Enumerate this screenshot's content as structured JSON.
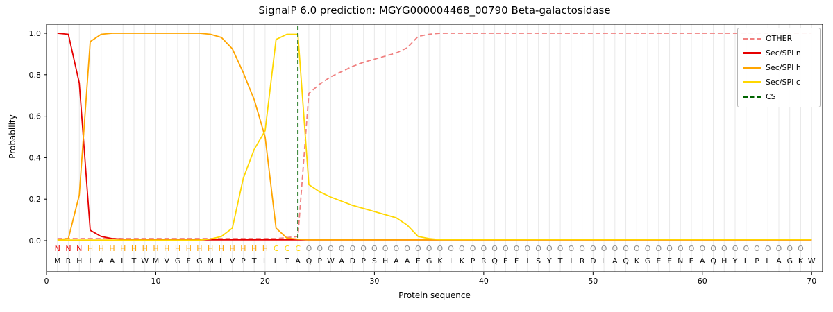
{
  "chart_data": {
    "type": "line",
    "title": "SignalP 6.0 prediction: MGYG000004468_00790 Beta-galactosidase",
    "xlabel": "Protein sequence",
    "ylabel": "Probability",
    "xlim": [
      0,
      71
    ],
    "ylim": [
      -0.15,
      1.045
    ],
    "x_ticks": [
      0,
      10,
      20,
      30,
      40,
      50,
      60,
      70
    ],
    "y_ticks": [
      0.0,
      0.2,
      0.4,
      0.6,
      0.8,
      1.0
    ],
    "x_positions": {
      "from": 1,
      "to": 70
    },
    "grid": "vertical-per-residue",
    "grid_color": "#e9e9e9",
    "legend_position": "upper right",
    "series": [
      {
        "name": "OTHER",
        "color": "#f08080",
        "dash": true,
        "values": [
          0.01,
          0.01,
          0.01,
          0.01,
          0.01,
          0.01,
          0.01,
          0.01,
          0.01,
          0.01,
          0.01,
          0.01,
          0.01,
          0.01,
          0.01,
          0.01,
          0.01,
          0.01,
          0.01,
          0.01,
          0.01,
          0.015,
          0.02,
          0.71,
          0.755,
          0.79,
          0.815,
          0.84,
          0.86,
          0.875,
          0.89,
          0.905,
          0.93,
          0.985,
          0.995,
          1.0,
          1.0,
          1.0,
          1.0,
          1.0,
          1.0,
          1.0,
          1.0,
          1.0,
          1.0,
          1.0,
          1.0,
          1.0,
          1.0,
          1.0,
          1.0,
          1.0,
          1.0,
          1.0,
          1.0,
          1.0,
          1.0,
          1.0,
          1.0,
          1.0,
          1.0,
          1.0,
          1.0,
          1.0,
          1.0,
          1.0,
          1.0,
          1.0,
          1.0,
          1.0
        ]
      },
      {
        "name": "Sec/SPI n",
        "color": "#e60000",
        "dash": false,
        "values": [
          1.0,
          0.995,
          0.76,
          0.05,
          0.02,
          0.01,
          0.007,
          0.005,
          0.004,
          0.004,
          0.004,
          0.004,
          0.004,
          0.004,
          0.004,
          0.004,
          0.004,
          0.004,
          0.004,
          0.004,
          0.004,
          0.004,
          0.004,
          0.004,
          0.004,
          0.004,
          0.004,
          0.004,
          0.004,
          0.004,
          0.004,
          0.004,
          0.004,
          0.004,
          0.004,
          0.004,
          0.004,
          0.004,
          0.004,
          0.004,
          0.004,
          0.004,
          0.004,
          0.004,
          0.004,
          0.004,
          0.004,
          0.004,
          0.004,
          0.004,
          0.004,
          0.004,
          0.004,
          0.004,
          0.004,
          0.004,
          0.004,
          0.004,
          0.004,
          0.004,
          0.004,
          0.004,
          0.004,
          0.004,
          0.004,
          0.004,
          0.004,
          0.004,
          0.004,
          0.004
        ]
      },
      {
        "name": "Sec/SPI h",
        "color": "#ffa500",
        "dash": false,
        "values": [
          0.005,
          0.01,
          0.22,
          0.96,
          0.995,
          1.0,
          1.0,
          1.0,
          1.0,
          1.0,
          1.0,
          1.0,
          1.0,
          1.0,
          0.995,
          0.98,
          0.925,
          0.81,
          0.68,
          0.5,
          0.06,
          0.012,
          0.007,
          0.004,
          0.004,
          0.004,
          0.004,
          0.004,
          0.004,
          0.004,
          0.004,
          0.004,
          0.004,
          0.004,
          0.004,
          0.004,
          0.004,
          0.004,
          0.004,
          0.004,
          0.004,
          0.004,
          0.004,
          0.004,
          0.004,
          0.004,
          0.004,
          0.004,
          0.004,
          0.004,
          0.004,
          0.004,
          0.004,
          0.004,
          0.004,
          0.004,
          0.004,
          0.004,
          0.004,
          0.004,
          0.004,
          0.004,
          0.004,
          0.004,
          0.004,
          0.004,
          0.004,
          0.004,
          0.004,
          0.004
        ]
      },
      {
        "name": "Sec/SPI c",
        "color": "#ffd700",
        "dash": false,
        "values": [
          0.003,
          0.003,
          0.003,
          0.003,
          0.003,
          0.003,
          0.003,
          0.003,
          0.003,
          0.003,
          0.003,
          0.003,
          0.003,
          0.003,
          0.008,
          0.02,
          0.06,
          0.3,
          0.44,
          0.53,
          0.97,
          0.995,
          0.995,
          0.27,
          0.235,
          0.21,
          0.19,
          0.17,
          0.155,
          0.14,
          0.125,
          0.11,
          0.075,
          0.02,
          0.01,
          0.005,
          0.005,
          0.005,
          0.005,
          0.005,
          0.005,
          0.005,
          0.005,
          0.005,
          0.005,
          0.005,
          0.005,
          0.005,
          0.005,
          0.005,
          0.005,
          0.005,
          0.005,
          0.005,
          0.005,
          0.005,
          0.005,
          0.005,
          0.005,
          0.005,
          0.005,
          0.005,
          0.005,
          0.005,
          0.005,
          0.005,
          0.005,
          0.005,
          0.005,
          0.005
        ]
      }
    ],
    "cs_marker": {
      "name": "CS",
      "x": 23,
      "color": "#006400",
      "dash": true
    },
    "sequence": "MRHIAALTWMVGFGMLVPTLLTAQPWADPSHAAEGKIKPRQEFISYTIRDLAQKGEENEAQHYLPLAGKW",
    "regions": "NNNHHHHHHHHHHHHHHHHHCCCOOOOOOOOOOOOOOOOOOOOOOOOOOOOOOOOOOOOOOOOOOOOOO",
    "region_colors": {
      "N": "#e60000",
      "H": "#ffa500",
      "C": "#ffd700",
      "O": "#8c8c8c"
    },
    "sequence_color": "#111111"
  }
}
